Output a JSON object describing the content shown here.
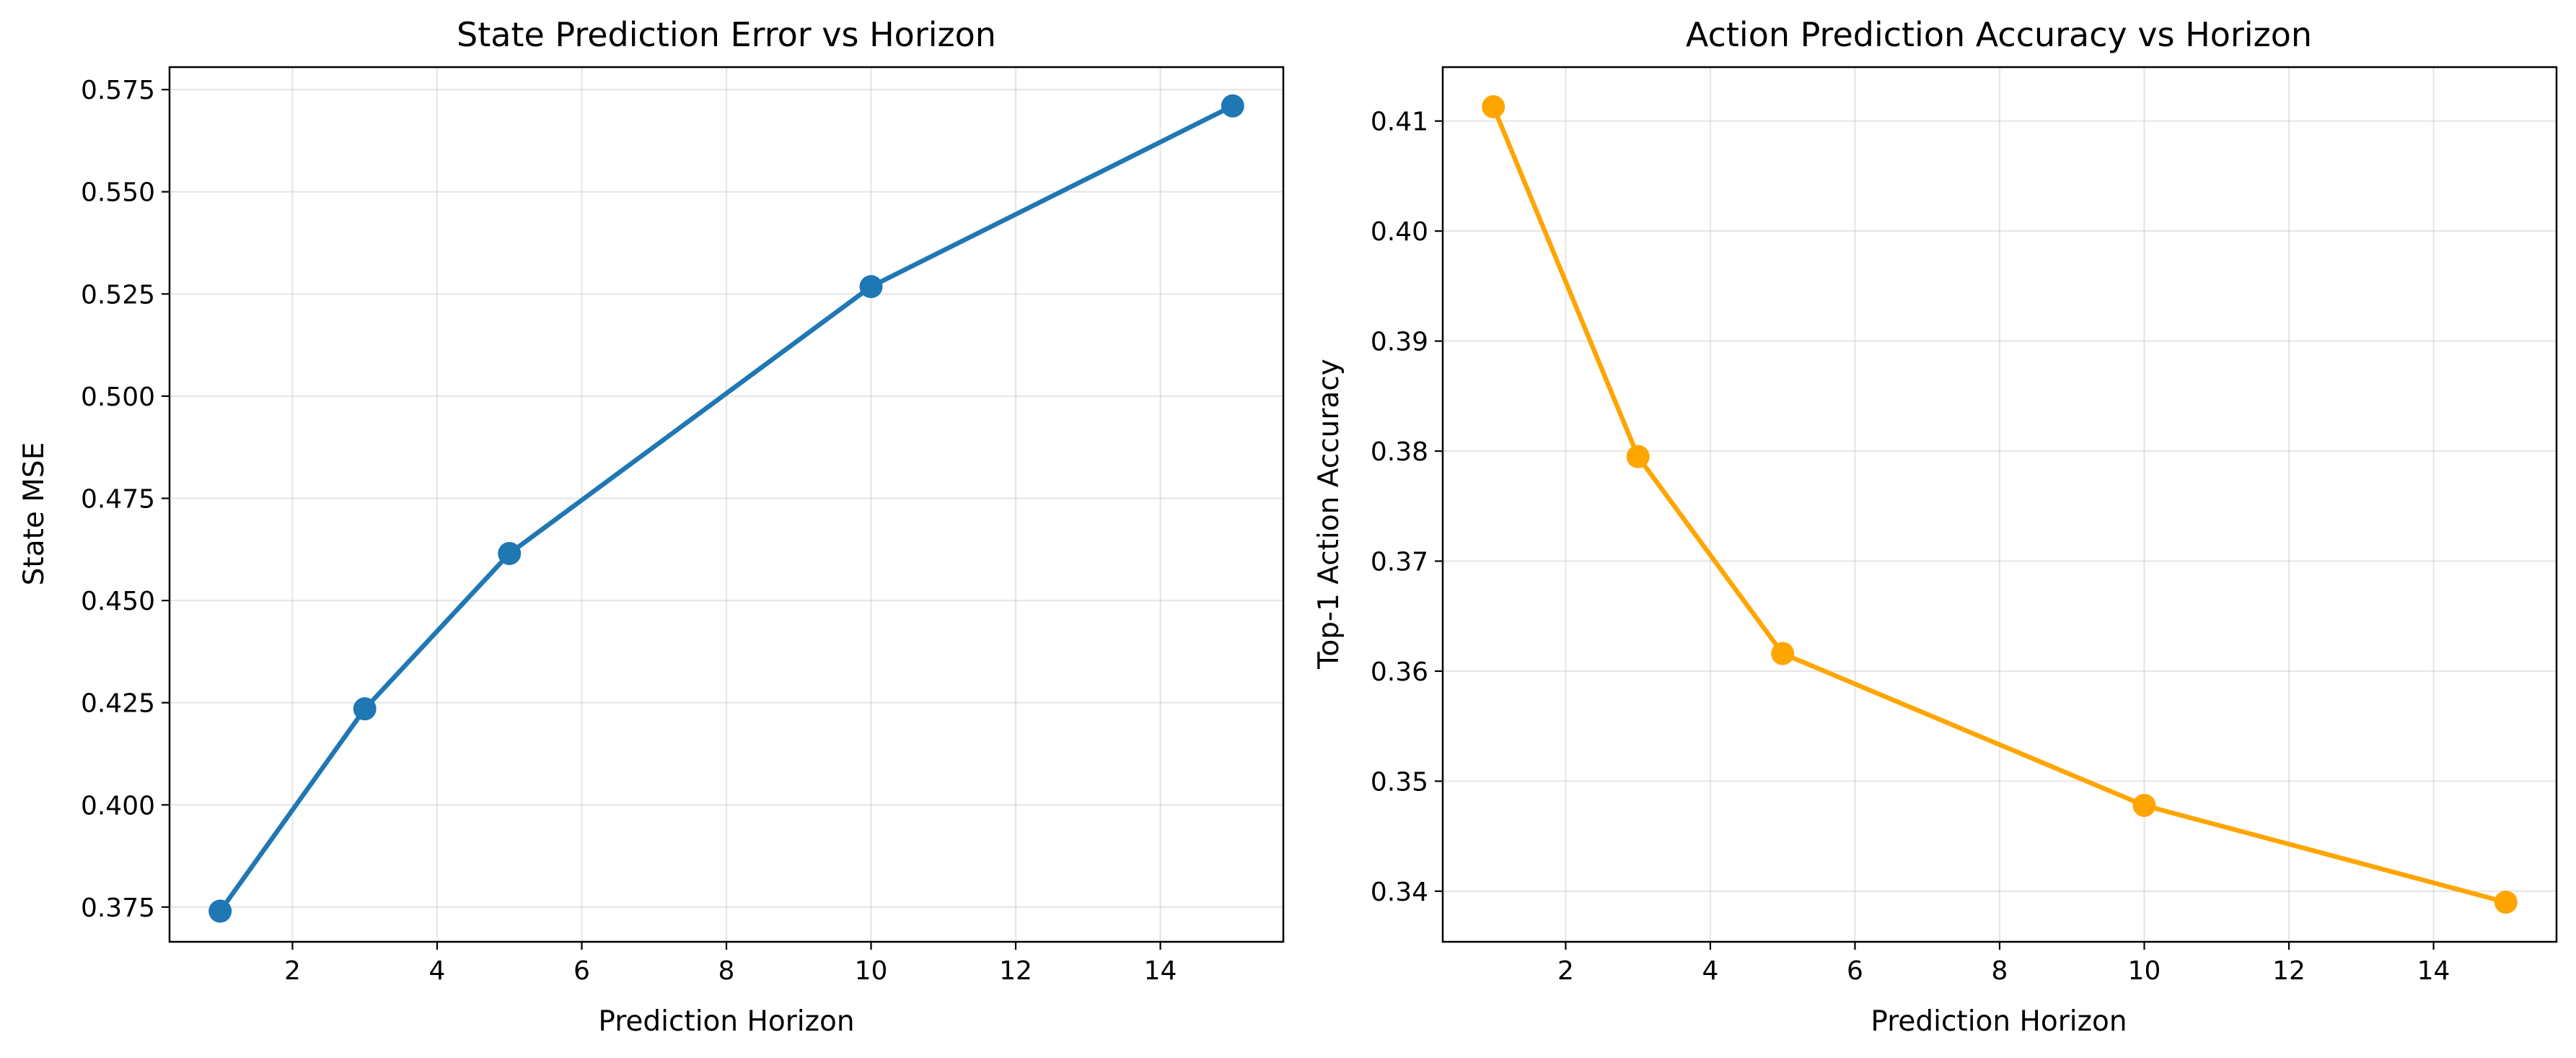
{
  "chart_data": [
    {
      "type": "line",
      "title": "State Prediction Error vs Horizon",
      "xlabel": "Prediction Horizon",
      "ylabel": "State MSE",
      "xlim": [
        0.3,
        15.7
      ],
      "ylim": [
        0.3665,
        0.5805
      ],
      "xticks": [
        2,
        4,
        6,
        8,
        10,
        12,
        14
      ],
      "xtick_labels": [
        "2",
        "4",
        "6",
        "8",
        "10",
        "12",
        "14"
      ],
      "yticks": [
        0.375,
        0.4,
        0.425,
        0.45,
        0.475,
        0.5,
        0.525,
        0.55,
        0.575
      ],
      "ytick_labels": [
        "0.375",
        "0.400",
        "0.425",
        "0.450",
        "0.475",
        "0.500",
        "0.525",
        "0.550",
        "0.575"
      ],
      "grid": true,
      "color": "#1f77b4",
      "series": [
        {
          "x": [
            1,
            3,
            5,
            10,
            15
          ],
          "y": [
            0.374,
            0.4235,
            0.4615,
            0.5268,
            0.571
          ]
        }
      ]
    },
    {
      "type": "line",
      "title": "Action Prediction Accuracy vs Horizon",
      "xlabel": "Prediction Horizon",
      "ylabel": "Top-1 Action Accuracy",
      "xlim": [
        0.3,
        15.7
      ],
      "ylim": [
        0.3354,
        0.4149
      ],
      "xticks": [
        2,
        4,
        6,
        8,
        10,
        12,
        14
      ],
      "xtick_labels": [
        "2",
        "4",
        "6",
        "8",
        "10",
        "12",
        "14"
      ],
      "yticks": [
        0.34,
        0.35,
        0.36,
        0.37,
        0.38,
        0.39,
        0.4,
        0.41
      ],
      "ytick_labels": [
        "0.34",
        "0.35",
        "0.36",
        "0.37",
        "0.38",
        "0.39",
        "0.40",
        "0.41"
      ],
      "grid": true,
      "color": "#ffa500",
      "series": [
        {
          "x": [
            1,
            3,
            5,
            10,
            15
          ],
          "y": [
            0.4113,
            0.3795,
            0.3616,
            0.3478,
            0.339
          ]
        }
      ]
    }
  ]
}
